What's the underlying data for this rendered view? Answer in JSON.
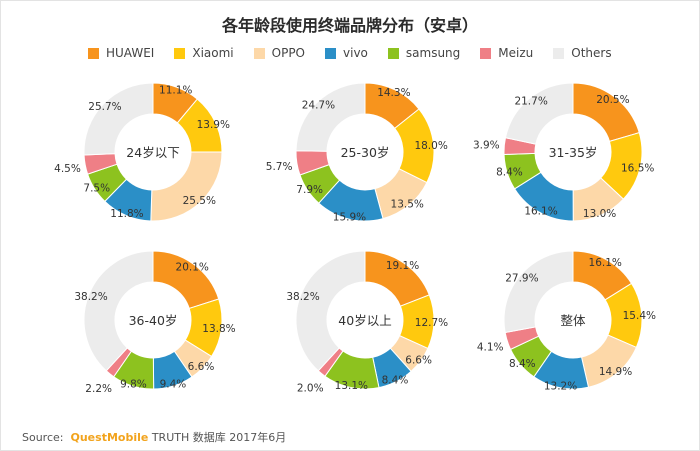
{
  "title": "各年龄段使用终端品牌分布（安卓）",
  "legend": [
    {
      "name": "HUAWEI",
      "color": "#f7941d"
    },
    {
      "name": "Xiaomi",
      "color": "#ffc90e"
    },
    {
      "name": "OPPO",
      "color": "#fdd8a8"
    },
    {
      "name": "vivo",
      "color": "#2b8fc7"
    },
    {
      "name": "samsung",
      "color": "#8dc21f"
    },
    {
      "name": "Meizu",
      "color": "#ef7f86"
    },
    {
      "name": "Others",
      "color": "#ececec"
    }
  ],
  "chart_data": [
    {
      "type": "pie",
      "title": "24岁以下",
      "categories": [
        "HUAWEI",
        "Xiaomi",
        "OPPO",
        "vivo",
        "samsung",
        "Meizu",
        "Others"
      ],
      "values": [
        11.1,
        13.9,
        25.5,
        11.8,
        7.5,
        4.5,
        25.7
      ],
      "labels": [
        "11.1%",
        "13.9%",
        "25.5%",
        "11.8%",
        "7.5%",
        "4.5%",
        "25.7%"
      ]
    },
    {
      "type": "pie",
      "title": "25-30岁",
      "categories": [
        "HUAWEI",
        "Xiaomi",
        "OPPO",
        "vivo",
        "samsung",
        "Meizu",
        "Others"
      ],
      "values": [
        14.3,
        18.0,
        13.5,
        15.9,
        7.9,
        5.7,
        24.7
      ],
      "labels": [
        "14.3%",
        "18.0%",
        "13.5%",
        "15.9%",
        "7.9%",
        "5.7%",
        "24.7%"
      ]
    },
    {
      "type": "pie",
      "title": "31-35岁",
      "categories": [
        "HUAWEI",
        "Xiaomi",
        "OPPO",
        "vivo",
        "samsung",
        "Meizu",
        "Others"
      ],
      "values": [
        20.5,
        16.5,
        13.0,
        16.1,
        8.4,
        3.9,
        21.7
      ],
      "labels": [
        "20.5%",
        "16.5%",
        "13.0%",
        "16.1%",
        "8.4%",
        "3.9%",
        "21.7%"
      ]
    },
    {
      "type": "pie",
      "title": "36-40岁",
      "categories": [
        "HUAWEI",
        "Xiaomi",
        "OPPO",
        "vivo",
        "samsung",
        "Meizu",
        "Others"
      ],
      "values": [
        20.1,
        13.8,
        6.6,
        9.4,
        9.8,
        2.2,
        38.2
      ],
      "labels": [
        "20.1%",
        "13.8%",
        "6.6%",
        "9.4%",
        "9.8%",
        "2.2%",
        "38.2%"
      ]
    },
    {
      "type": "pie",
      "title": "40岁以上",
      "categories": [
        "HUAWEI",
        "Xiaomi",
        "OPPO",
        "vivo",
        "samsung",
        "Meizu",
        "Others"
      ],
      "values": [
        19.1,
        12.7,
        6.6,
        8.4,
        13.1,
        2.0,
        38.2
      ],
      "labels": [
        "19.1%",
        "12.7%",
        "6.6%",
        "8.4%",
        "13.1%",
        "2.0%",
        "38.2%"
      ]
    },
    {
      "type": "pie",
      "title": "整体",
      "categories": [
        "HUAWEI",
        "Xiaomi",
        "OPPO",
        "vivo",
        "samsung",
        "Meizu",
        "Others"
      ],
      "values": [
        16.1,
        15.4,
        14.9,
        13.2,
        8.4,
        4.1,
        27.9
      ],
      "labels": [
        "16.1%",
        "15.4%",
        "14.9%",
        "13.2%",
        "8.4%",
        "4.1%",
        "27.9%"
      ]
    }
  ],
  "source": {
    "prefix": "Source:",
    "brand": "QuestMobile",
    "rest": "TRUTH 数据库 2017年6月"
  }
}
